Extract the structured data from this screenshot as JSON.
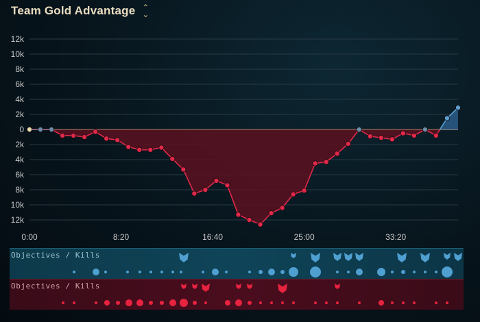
{
  "header": {
    "title": "Team Gold Advantage",
    "sort_icon": "sort-toggle-icon"
  },
  "colors": {
    "blue": "#5aa0d0",
    "red": "#e0294a",
    "red_fill": "#5a1020",
    "blue_fill": "#2c5a88",
    "grid": "#2a3a44",
    "zero": "#b09a78"
  },
  "bands": {
    "blue_label": "Objectives / Kills",
    "red_label": "Objectives / Kills"
  },
  "chart_data": {
    "type": "area",
    "title": "Team Gold Advantage",
    "xlabel": "",
    "ylabel": "",
    "x_unit": "minutes",
    "x_ticks": [
      "0:00",
      "8:20",
      "16:40",
      "25:00",
      "33:20"
    ],
    "x_tick_values": [
      0,
      8.333,
      16.667,
      25,
      33.333
    ],
    "y_ticks": [
      "12k",
      "10k",
      "8k",
      "6k",
      "4k",
      "2k",
      "0",
      "2k",
      "4k",
      "6k",
      "8k",
      "10k",
      "12k"
    ],
    "ylim": [
      -12000,
      12000
    ],
    "xlim": [
      0,
      39
    ],
    "series": [
      {
        "x": [
          0,
          1,
          2,
          3,
          4,
          5,
          6,
          7,
          8,
          9,
          10,
          11,
          12,
          13,
          14,
          15,
          16,
          17,
          18,
          19,
          20,
          21,
          22,
          23,
          24,
          25,
          26,
          27,
          28,
          29,
          30,
          31,
          32,
          33,
          34,
          35,
          36,
          37,
          38,
          39
        ],
        "values": [
          0,
          0,
          0,
          -800,
          -800,
          -1000,
          -300,
          -1200,
          -1400,
          -2300,
          -2700,
          -2700,
          -2400,
          -3900,
          -5300,
          -8500,
          -8000,
          -6800,
          -7400,
          -11300,
          -12000,
          -12600,
          -11100,
          -10400,
          -8600,
          -8100,
          -4500,
          -4300,
          -3200,
          -1900,
          0,
          -900,
          -1100,
          -1300,
          -500,
          -800,
          0,
          -800,
          1500,
          2900
        ]
      }
    ]
  }
}
